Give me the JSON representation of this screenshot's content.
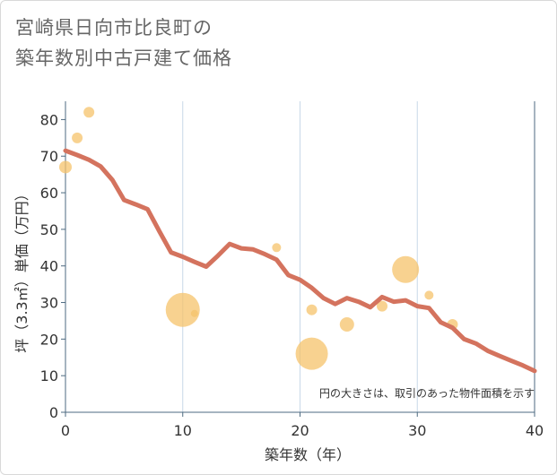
{
  "title_line1": "宮崎県日向市比良町の",
  "title_line2": "築年数別中古戸建て価格",
  "colors": {
    "line": "#d4735e",
    "bubble": "#f5c36b",
    "grid": "#c8d8e8",
    "axis": "#4d6a80"
  },
  "chart_data": {
    "type": "line+scatter",
    "xlabel": "築年数（年）",
    "ylabel": "坪（3.3㎡）単価（万円）",
    "xlim": [
      0,
      40
    ],
    "ylim": [
      0,
      85
    ],
    "xticks": [
      0,
      10,
      20,
      30,
      40
    ],
    "yticks": [
      0,
      10,
      20,
      30,
      40,
      50,
      60,
      70,
      80
    ],
    "note": "円の大きさは、取引のあった物件面積を示す",
    "trend_line": {
      "x": [
        0,
        1,
        2,
        3,
        4,
        5,
        6,
        7,
        8,
        9,
        10,
        11,
        12,
        13,
        14,
        15,
        16,
        17,
        18,
        19,
        20,
        21,
        22,
        23,
        24,
        25,
        26,
        27,
        28,
        29,
        30,
        31,
        32,
        33,
        34,
        35,
        36,
        37,
        38,
        39,
        40
      ],
      "y": [
        71.5,
        70.3,
        69,
        67.2,
        63.5,
        58,
        56.8,
        55.5,
        49.5,
        43.7,
        42.5,
        41.1,
        39.8,
        42.8,
        46,
        44.8,
        44.5,
        43.2,
        41.7,
        37.5,
        36.2,
        34,
        31.2,
        29.6,
        31.2,
        30.2,
        28.7,
        31.5,
        30.2,
        30.6,
        29,
        28.5,
        24.6,
        23.1,
        20,
        18.8,
        16.8,
        15.4,
        14.1,
        12.8,
        11.3
      ]
    },
    "bubbles": [
      {
        "x": 0,
        "y": 67,
        "size": 7
      },
      {
        "x": 1,
        "y": 75,
        "size": 6
      },
      {
        "x": 2,
        "y": 82,
        "size": 6
      },
      {
        "x": 10,
        "y": 28,
        "size": 19
      },
      {
        "x": 11,
        "y": 27,
        "size": 4
      },
      {
        "x": 18,
        "y": 45,
        "size": 5
      },
      {
        "x": 21,
        "y": 16,
        "size": 18
      },
      {
        "x": 21,
        "y": 28,
        "size": 6
      },
      {
        "x": 24,
        "y": 24,
        "size": 8
      },
      {
        "x": 27,
        "y": 29,
        "size": 6
      },
      {
        "x": 29,
        "y": 39,
        "size": 15
      },
      {
        "x": 31,
        "y": 32,
        "size": 5
      },
      {
        "x": 33,
        "y": 24,
        "size": 6
      }
    ]
  }
}
